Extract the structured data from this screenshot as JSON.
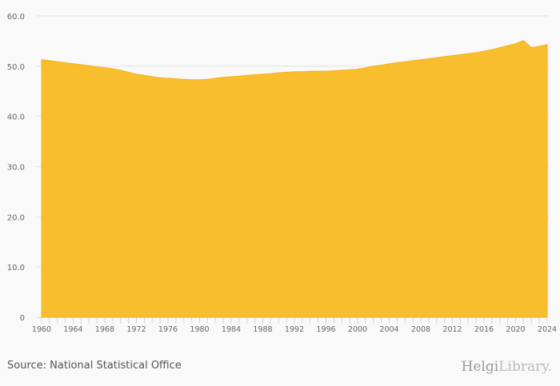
{
  "chart_data": {
    "type": "area",
    "title": "",
    "xlabel": "",
    "ylabel": "",
    "x": [
      1960,
      1961,
      1962,
      1963,
      1964,
      1965,
      1966,
      1967,
      1968,
      1969,
      1970,
      1971,
      1972,
      1973,
      1974,
      1975,
      1976,
      1977,
      1978,
      1979,
      1980,
      1981,
      1982,
      1983,
      1984,
      1985,
      1986,
      1987,
      1988,
      1989,
      1990,
      1991,
      1992,
      1993,
      1994,
      1995,
      1996,
      1997,
      1998,
      1999,
      2000,
      2001,
      2002,
      2003,
      2004,
      2005,
      2006,
      2007,
      2008,
      2009,
      2010,
      2011,
      2012,
      2013,
      2014,
      2015,
      2016,
      2017,
      2018,
      2019,
      2020,
      2021,
      2022,
      2023,
      2024
    ],
    "values": [
      51.3,
      51.1,
      50.9,
      50.7,
      50.5,
      50.3,
      50.1,
      49.9,
      49.7,
      49.5,
      49.2,
      48.8,
      48.4,
      48.2,
      47.9,
      47.7,
      47.6,
      47.5,
      47.4,
      47.3,
      47.3,
      47.4,
      47.6,
      47.8,
      47.9,
      48.0,
      48.2,
      48.3,
      48.4,
      48.5,
      48.7,
      48.8,
      48.9,
      48.9,
      49.0,
      49.0,
      49.0,
      49.1,
      49.2,
      49.3,
      49.4,
      49.7,
      50.0,
      50.2,
      50.5,
      50.7,
      50.9,
      51.1,
      51.3,
      51.5,
      51.7,
      51.9,
      52.1,
      52.3,
      52.5,
      52.7,
      53.0,
      53.3,
      53.7,
      54.1,
      54.5,
      55.1,
      53.7,
      54.0,
      54.3
    ],
    "ylim": [
      0,
      60
    ],
    "yticks": [
      "0",
      "10.0",
      "20.0",
      "30.0",
      "40.0",
      "50.0",
      "60.0"
    ],
    "ytick_values": [
      0,
      10,
      20,
      30,
      40,
      50,
      60
    ],
    "xticks": [
      "1960",
      "1964",
      "1968",
      "1972",
      "1976",
      "1980",
      "1984",
      "1988",
      "1992",
      "1996",
      "2000",
      "2004",
      "2008",
      "2012",
      "2016",
      "2020",
      "2024"
    ],
    "grid": true,
    "color": "#f9be2e"
  },
  "footer": {
    "source": "Source: National Statistical Office",
    "logo_main": "Helgi",
    "logo_sub": "Library."
  }
}
